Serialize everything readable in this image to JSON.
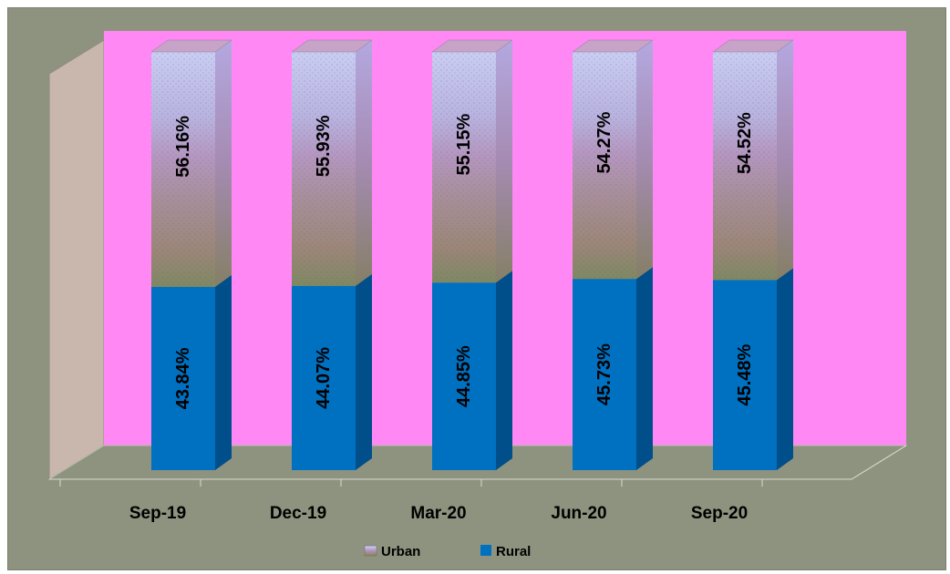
{
  "chart_data": {
    "type": "bar",
    "stacked": true,
    "three_d": true,
    "categories": [
      "Sep-19",
      "Dec-19",
      "Mar-20",
      "Jun-20",
      "Sep-20"
    ],
    "series": [
      {
        "name": "Rural",
        "values": [
          43.84,
          44.07,
          44.85,
          45.73,
          45.48
        ],
        "labels": [
          "43.84%",
          "44.07%",
          "44.85%",
          "45.73%",
          "45.48%"
        ],
        "color": "#0070c0"
      },
      {
        "name": "Urban",
        "values": [
          56.16,
          55.93,
          55.15,
          54.27,
          54.52
        ],
        "labels": [
          "56.16%",
          "55.93%",
          "55.15%",
          "54.27%",
          "54.52%"
        ],
        "fill": "photo-texture"
      }
    ],
    "ylim": [
      0,
      100
    ],
    "data_label_orientation": "vertical",
    "legend_position": "bottom",
    "colors": {
      "background": "#8e937f",
      "back_wall": "#ff88f5",
      "side_wall": "#c9b6ac",
      "floor": "#8e937f",
      "rural_front": "#0070c0",
      "rural_side": "#004f8a",
      "rural_top": "#3d8d2f"
    }
  }
}
